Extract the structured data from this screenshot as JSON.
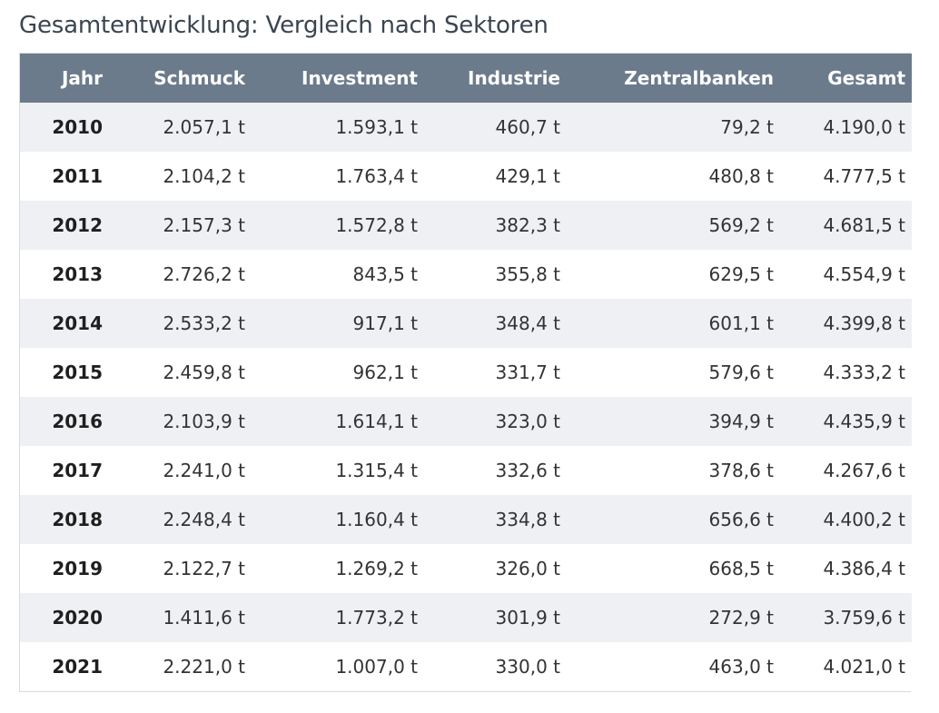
{
  "title": "Gesamtentwicklung: Vergleich nach Sektoren",
  "table": {
    "columns": [
      "Jahr",
      "Schmuck",
      "Investment",
      "Industrie",
      "Zentralbanken",
      "Gesamt"
    ],
    "rows": [
      [
        "2010",
        "2.057,1 t",
        "1.593,1 t",
        "460,7 t",
        "79,2 t",
        "4.190,0 t"
      ],
      [
        "2011",
        "2.104,2 t",
        "1.763,4 t",
        "429,1 t",
        "480,8 t",
        "4.777,5 t"
      ],
      [
        "2012",
        "2.157,3 t",
        "1.572,8 t",
        "382,3 t",
        "569,2 t",
        "4.681,5 t"
      ],
      [
        "2013",
        "2.726,2 t",
        "843,5 t",
        "355,8 t",
        "629,5 t",
        "4.554,9 t"
      ],
      [
        "2014",
        "2.533,2 t",
        "917,1 t",
        "348,4 t",
        "601,1 t",
        "4.399,8 t"
      ],
      [
        "2015",
        "2.459,8 t",
        "962,1 t",
        "331,7 t",
        "579,6 t",
        "4.333,2 t"
      ],
      [
        "2016",
        "2.103,9 t",
        "1.614,1 t",
        "323,0 t",
        "394,9 t",
        "4.435,9 t"
      ],
      [
        "2017",
        "2.241,0 t",
        "1.315,4 t",
        "332,6 t",
        "378,6 t",
        "4.267,6 t"
      ],
      [
        "2018",
        "2.248,4 t",
        "1.160,4 t",
        "334,8 t",
        "656,6 t",
        "4.400,2 t"
      ],
      [
        "2019",
        "2.122,7 t",
        "1.269,2 t",
        "326,0 t",
        "668,5 t",
        "4.386,4 t"
      ],
      [
        "2020",
        "1.411,6 t",
        "1.773,2 t",
        "301,9 t",
        "272,9 t",
        "3.759,6 t"
      ],
      [
        "2021",
        "2.221,0 t",
        "1.007,0 t",
        "330,0 t",
        "463,0 t",
        "4.021,0 t"
      ]
    ]
  },
  "colors": {
    "header_bg": "#6b7b8c",
    "stripe_bg": "#eef0f3",
    "title_text": "#3b4550"
  }
}
